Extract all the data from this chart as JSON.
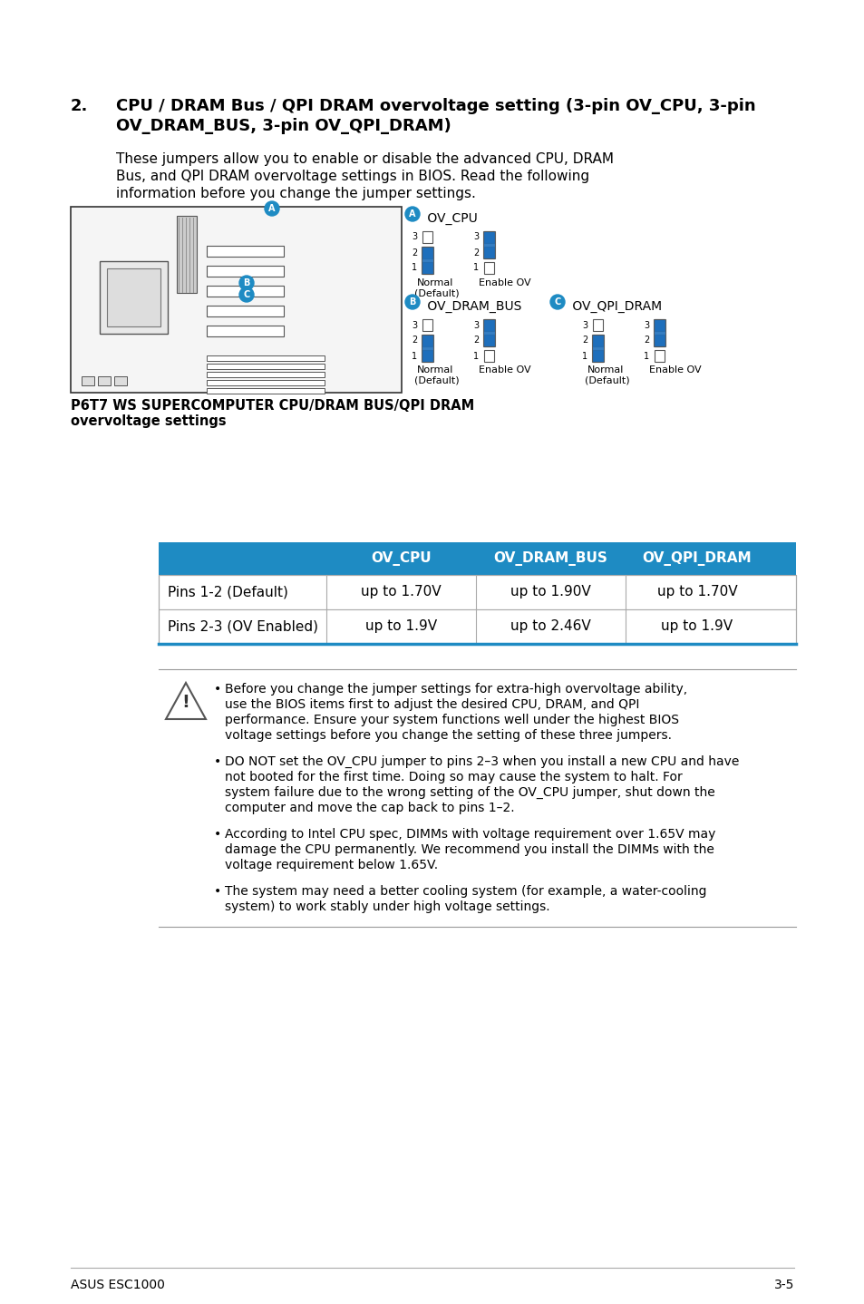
{
  "page_bg": "#ffffff",
  "title_number": "2.",
  "title_text_line1": "CPU / DRAM Bus / QPI DRAM overvoltage setting (3-pin OV_CPU, 3-pin",
  "title_text_line2": "OV_DRAM_BUS, 3-pin OV_QPI_DRAM)",
  "body_text": "These jumpers allow you to enable or disable the advanced CPU, DRAM\nBus, and QPI DRAM overvoltage settings in BIOS. Read the following\ninformation before you change the jumper settings.",
  "caption_line1": "P6T7 WS SUPERCOMPUTER CPU/DRAM BUS/QPI DRAM",
  "caption_line2": "overvoltage settings",
  "table_header_bg": "#1e8bc3",
  "table_header_color": "#ffffff",
  "table_headers": [
    "",
    "OV_CPU",
    "OV_DRAM_BUS",
    "OV_QPI_DRAM"
  ],
  "table_row1": [
    "Pins 1-2 (Default)",
    "up to 1.70V",
    "up to 1.90V",
    "up to 1.70V"
  ],
  "table_row2": [
    "Pins 2-3 (OV Enabled)",
    "up to 1.9V",
    "up to 2.46V",
    "up to 1.9V"
  ],
  "bullet1": "Before you change the jumper settings for extra-high overvoltage ability, use the BIOS items first to adjust the desired CPU, DRAM, and QPI performance. Ensure your system functions well under the highest BIOS voltage settings before you change the setting of these three jumpers.",
  "bullet2": "DO NOT set the OV_CPU jumper to pins 2–3 when you install a new CPU and have not booted for the first time. Doing so may cause the system to halt. For system failure due to the wrong setting of the OV_CPU jumper, shut down the computer and move the cap back to pins 1–2.",
  "bullet3": "According to Intel CPU spec, DIMMs with voltage requirement over 1.65V may damage the CPU permanently. We recommend you install the DIMMs with the voltage requirement below 1.65V.",
  "bullet4": "The system may need a better cooling system (for example, a water-cooling system) to work stably under high voltage settings.",
  "footer_left": "ASUS ESC1000",
  "footer_right": "3-5",
  "jumper_blue": "#1e6fbc",
  "jumper_outline": "#555555"
}
